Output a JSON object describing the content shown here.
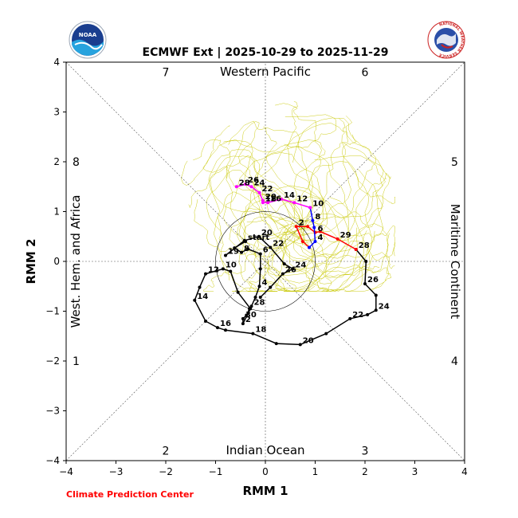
{
  "chart_data": {
    "type": "line",
    "title": "ECMWF Ext | 2025-10-29 to 2025-11-29",
    "xlabel": "RMM 1",
    "ylabel": "RMM 2",
    "xlim": [
      -4,
      4
    ],
    "ylim": [
      -4,
      4
    ],
    "xticks": [
      "−4",
      "−3",
      "−2",
      "−1",
      "0",
      "1",
      "2",
      "3",
      "4"
    ],
    "yticks": [
      "−4",
      "−3",
      "−2",
      "−1",
      "0",
      "1",
      "2",
      "3",
      "4"
    ],
    "unit_circle_radius": 1,
    "phase_numbers": [
      {
        "label": "1",
        "x": -3.8,
        "y": -2.0
      },
      {
        "label": "2",
        "x": -2.0,
        "y": -3.8
      },
      {
        "label": "3",
        "x": 2.0,
        "y": -3.8
      },
      {
        "label": "4",
        "x": 3.8,
        "y": -2.0
      },
      {
        "label": "5",
        "x": 3.8,
        "y": 2.0
      },
      {
        "label": "6",
        "x": 2.0,
        "y": 3.8
      },
      {
        "label": "7",
        "x": -2.0,
        "y": 3.8
      },
      {
        "label": "8",
        "x": -3.8,
        "y": 2.0
      }
    ],
    "region_labels": {
      "top": "Western Pacific",
      "bottom": "Indian Ocean",
      "left": "West. Hem. and Africa",
      "right": "Maritime Continent"
    },
    "start_label": "start",
    "ensemble": {
      "description_color": "#c8c800",
      "count": 50,
      "center": [
        0.55,
        1.05
      ]
    },
    "series": [
      {
        "color": "#000000",
        "points": [
          {
            "x": -0.4,
            "y": 0.4,
            "label": "start"
          },
          {
            "x": -0.62,
            "y": 0.27
          },
          {
            "x": -0.48,
            "y": 0.18,
            "label": "8"
          },
          {
            "x": -0.35,
            "y": 0.25
          },
          {
            "x": -0.1,
            "y": 0.15,
            "label": "6"
          },
          {
            "x": -0.1,
            "y": -0.15
          },
          {
            "x": -0.12,
            "y": -0.5,
            "label": "4"
          },
          {
            "x": -0.2,
            "y": -0.72
          },
          {
            "x": -0.28,
            "y": -0.9,
            "label": "28"
          },
          {
            "x": -0.32,
            "y": -0.95
          },
          {
            "x": -0.38,
            "y": -1.08
          },
          {
            "x": -0.45,
            "y": -1.15,
            "label": "30"
          },
          {
            "x": -0.45,
            "y": -1.25,
            "label": "2"
          },
          {
            "x": -0.3,
            "y": -0.95
          },
          {
            "x": -0.55,
            "y": -0.62
          },
          {
            "x": -0.7,
            "y": -0.2
          },
          {
            "x": -0.85,
            "y": -0.15,
            "label": "10"
          },
          {
            "x": -1.2,
            "y": -0.25,
            "label": "12"
          },
          {
            "x": -1.32,
            "y": -0.52
          },
          {
            "x": -1.42,
            "y": -0.78,
            "label": "14"
          },
          {
            "x": -1.2,
            "y": -1.2
          },
          {
            "x": -0.96,
            "y": -1.33,
            "label": "16"
          },
          {
            "x": -0.8,
            "y": -1.38
          },
          {
            "x": -0.25,
            "y": -1.45,
            "label": "18"
          },
          {
            "x": 0.22,
            "y": -1.65
          },
          {
            "x": 0.7,
            "y": -1.67,
            "label": "20"
          },
          {
            "x": 1.22,
            "y": -1.45
          },
          {
            "x": 1.7,
            "y": -1.15,
            "label": "22"
          },
          {
            "x": 2.05,
            "y": -1.07
          },
          {
            "x": 2.22,
            "y": -0.98,
            "label": "24"
          },
          {
            "x": 2.22,
            "y": -0.68
          },
          {
            "x": 2.0,
            "y": -0.45,
            "label": "26"
          },
          {
            "x": 2.02,
            "y": 0.0
          },
          {
            "x": 1.82,
            "y": 0.24,
            "label": "28"
          }
        ]
      },
      {
        "color": "#000000",
        "points": [
          {
            "x": -0.8,
            "y": 0.12,
            "label": "19"
          },
          {
            "x": -0.42,
            "y": 0.42
          },
          {
            "x": -0.13,
            "y": 0.5,
            "label": "20"
          },
          {
            "x": 0.1,
            "y": 0.28,
            "label": "22"
          },
          {
            "x": 0.38,
            "y": -0.05
          },
          {
            "x": 0.55,
            "y": -0.15,
            "label": "24"
          },
          {
            "x": 0.35,
            "y": -0.25,
            "label": "26"
          },
          {
            "x": 0.1,
            "y": -0.52
          },
          {
            "x": -0.1,
            "y": -0.72
          }
        ]
      },
      {
        "color": "#ff0000",
        "points": [
          {
            "x": 1.82,
            "y": 0.24
          },
          {
            "x": 1.45,
            "y": 0.45,
            "label": "29"
          },
          {
            "x": 1.1,
            "y": 0.6
          },
          {
            "x": 1.0,
            "y": 0.58,
            "label": "6"
          },
          {
            "x": 0.85,
            "y": 0.7
          },
          {
            "x": 0.62,
            "y": 0.7,
            "label": "2"
          },
          {
            "x": 0.75,
            "y": 0.4
          },
          {
            "x": 0.88,
            "y": 0.28
          }
        ]
      },
      {
        "color": "#0000ff",
        "points": [
          {
            "x": 0.88,
            "y": 0.28
          },
          {
            "x": 1.0,
            "y": 0.4,
            "label": "4"
          },
          {
            "x": 0.98,
            "y": 0.68
          },
          {
            "x": 0.95,
            "y": 0.82,
            "label": "8"
          },
          {
            "x": 0.9,
            "y": 1.08,
            "label": "10"
          }
        ]
      },
      {
        "color": "#ff00ff",
        "points": [
          {
            "x": 0.9,
            "y": 1.08
          },
          {
            "x": 0.58,
            "y": 1.18,
            "label": "12"
          },
          {
            "x": 0.32,
            "y": 1.25,
            "label": "14"
          },
          {
            "x": 0.05,
            "y": 1.18,
            "label": "16"
          },
          {
            "x": -0.05,
            "y": 1.18,
            "label": "18"
          },
          {
            "x": -0.05,
            "y": 1.22,
            "label": "20"
          },
          {
            "x": -0.12,
            "y": 1.38,
            "label": "22"
          },
          {
            "x": -0.28,
            "y": 1.5,
            "label": "24"
          },
          {
            "x": -0.4,
            "y": 1.55,
            "label": "26"
          },
          {
            "x": -0.58,
            "y": 1.5,
            "label": "28"
          }
        ]
      }
    ]
  },
  "credit": "Climate Prediction Center",
  "logos": {
    "noaa": "NOAA",
    "nws_text": "NATIONAL WEATHER SERVICE"
  }
}
